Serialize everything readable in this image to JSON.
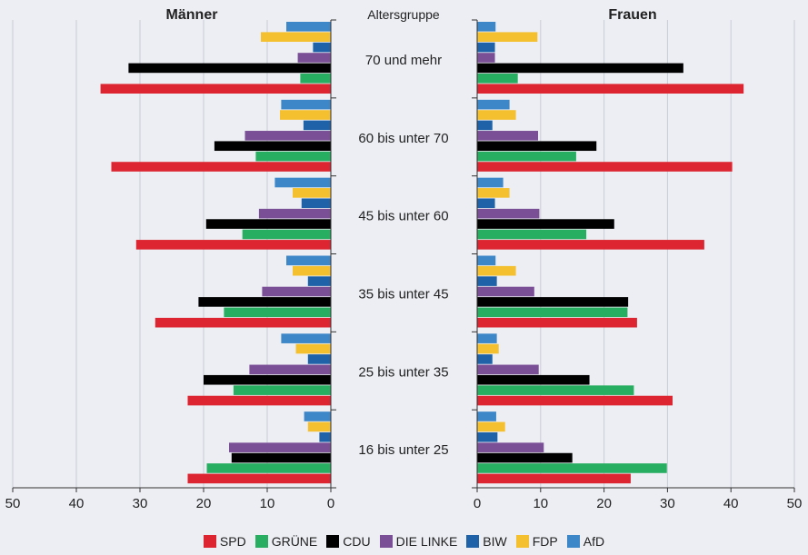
{
  "chart_data": {
    "type": "bar",
    "titles": {
      "men": "Männer",
      "women": "Frauen",
      "center": "Altersgruppe"
    },
    "categories": [
      "70 und mehr",
      "60 bis unter 70",
      "45 bis unter 60",
      "35 bis unter 45",
      "25 bis unter 35",
      "16 bis unter 25"
    ],
    "xlim": [
      0,
      50
    ],
    "x_ticks": [
      "50",
      "40",
      "30",
      "20",
      "10",
      "0"
    ],
    "x_ticks_right": [
      "0",
      "10",
      "20",
      "30",
      "40",
      "50"
    ],
    "grid": true,
    "legend_position": "bottom",
    "series": [
      {
        "name": "AfD",
        "color": "#3D87C8",
        "men": [
          7.0,
          7.8,
          8.8,
          7.0,
          7.8,
          4.2
        ],
        "women": [
          2.9,
          5.1,
          4.1,
          2.9,
          3.1,
          3.0
        ]
      },
      {
        "name": "FDP",
        "color": "#F5C030",
        "men": [
          11.0,
          8.0,
          6.0,
          6.0,
          5.5,
          3.6
        ],
        "women": [
          9.5,
          6.1,
          5.1,
          6.1,
          3.4,
          4.4
        ]
      },
      {
        "name": "BIW",
        "color": "#1F62A8",
        "men": [
          2.8,
          4.3,
          4.6,
          3.6,
          3.6,
          1.8
        ],
        "women": [
          2.8,
          2.4,
          2.8,
          3.1,
          2.4,
          3.2
        ]
      },
      {
        "name": "DIE LINKE",
        "color": "#7B4F96",
        "men": [
          5.2,
          13.5,
          11.3,
          10.8,
          12.8,
          16.0
        ],
        "women": [
          2.8,
          9.6,
          9.8,
          9.0,
          9.7,
          10.5
        ]
      },
      {
        "name": "CDU",
        "color": "#000000",
        "men": [
          31.8,
          18.3,
          19.6,
          20.8,
          20.0,
          15.6
        ],
        "women": [
          32.5,
          18.8,
          21.6,
          23.8,
          17.7,
          15.0
        ]
      },
      {
        "name": "GRÜNE",
        "color": "#27AE60",
        "men": [
          4.8,
          11.8,
          13.9,
          16.8,
          15.3,
          19.5
        ],
        "women": [
          6.4,
          15.6,
          17.2,
          23.7,
          24.7,
          29.9
        ]
      },
      {
        "name": "SPD",
        "color": "#DC2530",
        "men": [
          36.2,
          34.5,
          30.6,
          27.6,
          22.5,
          22.5
        ],
        "women": [
          42.0,
          40.2,
          35.8,
          25.2,
          30.8,
          24.2
        ]
      }
    ],
    "legend_order": [
      "SPD",
      "GRÜNE",
      "CDU",
      "DIE LINKE",
      "BIW",
      "FDP",
      "AfD"
    ]
  }
}
